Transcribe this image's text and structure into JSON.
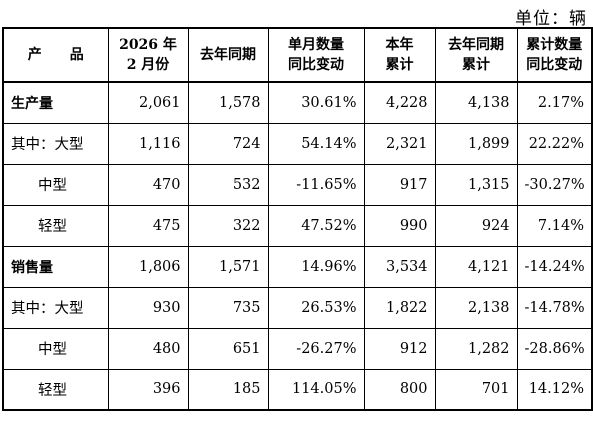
{
  "unit_label": "单位：辆",
  "headers": {
    "product": "产　　品",
    "feb_line1": "2026 年",
    "feb_line2": "2 月份",
    "last_year": "去年同期",
    "month_yoy_line1": "单月数量",
    "month_yoy_line2": "同比变动",
    "ytd_line1": "本年",
    "ytd_line2": "累计",
    "ly_ytd_line1": "去年同期",
    "ly_ytd_line2": "累计",
    "ytd_yoy_line1": "累计数量",
    "ytd_yoy_line2": "同比变动"
  },
  "rows": [
    {
      "label": "生产量",
      "feb": "2,061",
      "ly": "1,578",
      "myoy": "30.61%",
      "ytd": "4,228",
      "lyytd": "4,138",
      "ytdyoy": "2.17%"
    },
    {
      "label": "其中：大型",
      "feb": "1,116",
      "ly": "724",
      "myoy": "54.14%",
      "ytd": "2,321",
      "lyytd": "1,899",
      "ytdyoy": "22.22%"
    },
    {
      "label": "中型",
      "feb": "470",
      "ly": "532",
      "myoy": "-11.65%",
      "ytd": "917",
      "lyytd": "1,315",
      "ytdyoy": "-30.27%"
    },
    {
      "label": "轻型",
      "feb": "475",
      "ly": "322",
      "myoy": "47.52%",
      "ytd": "990",
      "lyytd": "924",
      "ytdyoy": "7.14%"
    },
    {
      "label": "销售量",
      "feb": "1,806",
      "ly": "1,571",
      "myoy": "14.96%",
      "ytd": "3,534",
      "lyytd": "4,121",
      "ytdyoy": "-14.24%"
    },
    {
      "label": "其中：大型",
      "feb": "930",
      "ly": "735",
      "myoy": "26.53%",
      "ytd": "1,822",
      "lyytd": "2,138",
      "ytdyoy": "-14.78%"
    },
    {
      "label": "中型",
      "feb": "480",
      "ly": "651",
      "myoy": "-26.27%",
      "ytd": "912",
      "lyytd": "1,282",
      "ytdyoy": "-28.86%"
    },
    {
      "label": "轻型",
      "feb": "396",
      "ly": "185",
      "myoy": "114.05%",
      "ytd": "800",
      "lyytd": "701",
      "ytdyoy": "14.12%"
    }
  ]
}
